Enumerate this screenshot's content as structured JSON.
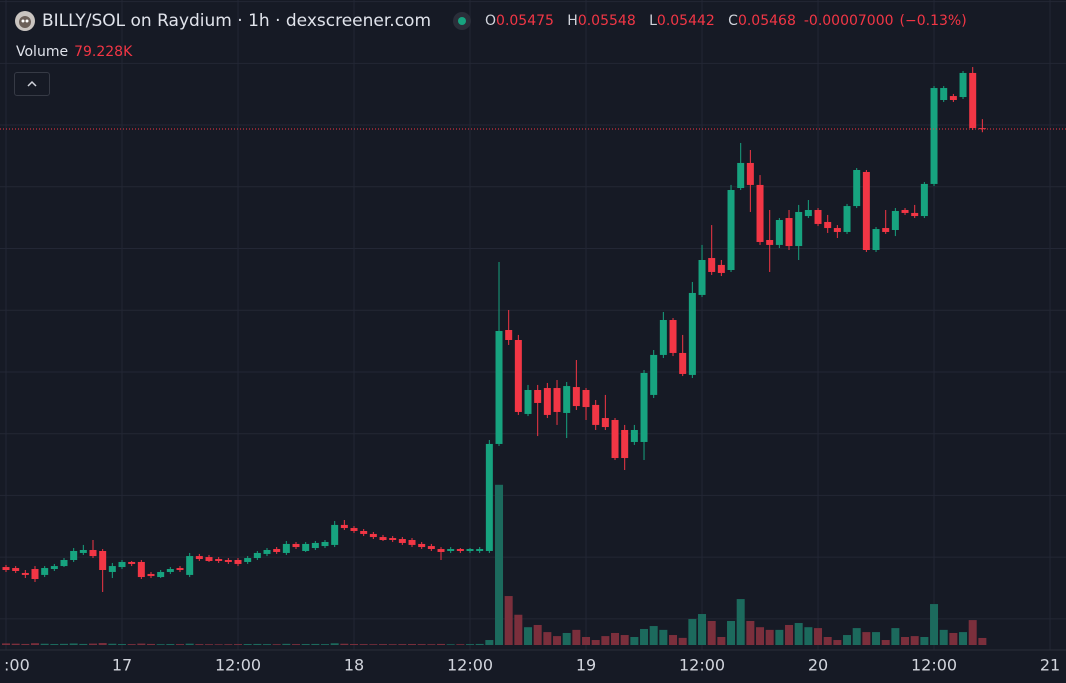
{
  "chart_data": {
    "type": "candlestick",
    "title": "BILLY/SOL on Raydium · 1h · dexscreener.com",
    "readout": {
      "letters": [
        "O",
        "H",
        "L",
        "C"
      ],
      "values": [
        0.05475,
        0.05548,
        0.05442,
        0.05468
      ],
      "change": {
        "value": -7e-05,
        "label": "-0.00007000"
      },
      "change_percent": {
        "value": -0.13,
        "label": "(−0.13%)"
      }
    },
    "volume_title": "Volume",
    "volume_readout": {
      "value": 79228,
      "label": "79.228K"
    },
    "categories": [
      ":00",
      null,
      null,
      null,
      null,
      null,
      null,
      null,
      null,
      null,
      null,
      null,
      "17",
      null,
      null,
      null,
      null,
      null,
      null,
      null,
      null,
      null,
      null,
      null,
      "12:00",
      null,
      null,
      null,
      null,
      null,
      null,
      null,
      null,
      null,
      null,
      null,
      "18",
      null,
      null,
      null,
      null,
      null,
      null,
      null,
      null,
      null,
      null,
      null,
      "12:00",
      null,
      null,
      null,
      null,
      null,
      null,
      null,
      null,
      null,
      null,
      null,
      "19",
      null,
      null,
      null,
      null,
      null,
      null,
      null,
      null,
      null,
      null,
      null,
      "12:00",
      null,
      null,
      null,
      null,
      null,
      null,
      null,
      null,
      null,
      null,
      null,
      "20",
      null,
      null,
      null,
      null,
      null,
      null,
      null,
      null,
      null,
      null,
      null,
      "12:00",
      null,
      null,
      null,
      null,
      null,
      null,
      null,
      null,
      null,
      null,
      null,
      "21"
    ],
    "open": [
      0.0192,
      0.01912,
      0.01872,
      0.01904,
      0.01856,
      0.01904,
      0.01928,
      0.01977,
      0.02034,
      0.02058,
      0.0205,
      0.0188,
      0.0192,
      0.01961,
      0.01961,
      0.01864,
      0.01839,
      0.0188,
      0.01912,
      0.01856,
      0.02009,
      0.02001,
      0.01985,
      0.01977,
      0.01977,
      0.01961,
      0.01993,
      0.02026,
      0.02066,
      0.02034,
      0.02107,
      0.0205,
      0.02074,
      0.0209,
      0.02099,
      0.02261,
      0.02236,
      0.02212,
      0.02188,
      0.02163,
      0.02155,
      0.02147,
      0.02139,
      0.02107,
      0.0209,
      0.02066,
      0.0205,
      0.02066,
      0.0205,
      0.0205,
      0.0205,
      0.02917,
      0.0384,
      0.03759,
      0.0316,
      0.03354,
      0.0337,
      0.0337,
      0.03168,
      0.03378,
      0.03354,
      0.03233,
      0.03127,
      0.03111,
      0.0303,
      0.02933,
      0.02933,
      0.03314,
      0.03638,
      0.03921,
      0.03654,
      0.03476,
      0.04124,
      0.04423,
      0.04367,
      0.04326,
      0.0499,
      0.05193,
      0.05015,
      0.04569,
      0.04529,
      0.04747,
      0.0452,
      0.04763,
      0.04812,
      0.04715,
      0.04666,
      0.04634,
      0.04844,
      0.0512,
      0.04488,
      0.04666,
      0.0465,
      0.04812,
      0.04788,
      0.04763,
      0.05023,
      0.05703,
      0.05735,
      0.05727,
      0.05922,
      0.05475,
      null,
      null,
      null,
      null,
      null,
      null,
      null
    ],
    "high": [
      0.01937,
      0.01928,
      0.01896,
      0.01928,
      0.01928,
      0.01945,
      0.01993,
      0.02074,
      0.02099,
      0.02139,
      0.02066,
      0.01953,
      0.01977,
      0.01969,
      0.01977,
      0.0188,
      0.01896,
      0.0192,
      0.01928,
      0.02034,
      0.02026,
      0.02018,
      0.02001,
      0.01993,
      0.01993,
      0.02009,
      0.0205,
      0.02074,
      0.02082,
      0.02131,
      0.02123,
      0.02123,
      0.02131,
      0.02139,
      0.02293,
      0.02301,
      0.02252,
      0.02228,
      0.02204,
      0.0218,
      0.02171,
      0.02163,
      0.02155,
      0.02123,
      0.02107,
      0.02082,
      0.02082,
      0.02074,
      0.02074,
      0.02082,
      0.02949,
      0.04391,
      0.04002,
      0.038,
      0.03395,
      0.03395,
      0.03411,
      0.03435,
      0.03419,
      0.03597,
      0.0337,
      0.03273,
      0.03314,
      0.03127,
      0.03071,
      0.03071,
      0.03516,
      0.03678,
      0.03986,
      0.03937,
      0.038,
      0.04229,
      0.04529,
      0.0469,
      0.04407,
      0.05015,
      0.05355,
      0.05298,
      0.05095,
      0.04812,
      0.04747,
      0.04812,
      0.04853,
      0.04893,
      0.04828,
      0.04772,
      0.0469,
      0.04861,
      0.05152,
      0.05136,
      0.04674,
      0.04812,
      0.04828,
      0.04828,
      0.04853,
      0.05039,
      0.05816,
      0.05816,
      0.05752,
      0.05938,
      0.0597,
      0.05548,
      null,
      null,
      null,
      null,
      null,
      null,
      null
    ],
    "low": [
      0.0188,
      0.01872,
      0.01831,
      0.01799,
      0.01839,
      0.01888,
      0.0192,
      0.01961,
      0.02018,
      0.01993,
      0.01718,
      0.01831,
      0.01904,
      0.01928,
      0.01823,
      0.01831,
      0.01831,
      0.01864,
      0.0188,
      0.01839,
      0.01969,
      0.01961,
      0.01953,
      0.01945,
      0.01928,
      0.01945,
      0.01977,
      0.02009,
      0.02026,
      0.02018,
      0.02066,
      0.02042,
      0.02058,
      0.02074,
      0.02082,
      0.0222,
      0.02196,
      0.02171,
      0.02147,
      0.02131,
      0.02123,
      0.02099,
      0.02082,
      0.02066,
      0.0205,
      0.01977,
      0.02034,
      0.02034,
      0.02034,
      0.02034,
      0.02034,
      0.029,
      0.03719,
      0.03152,
      0.03143,
      0.02981,
      0.03127,
      0.03071,
      0.02965,
      0.03192,
      0.03111,
      0.0303,
      0.0303,
      0.02787,
      0.02706,
      0.02909,
      0.02787,
      0.03289,
      0.03613,
      0.03629,
      0.03467,
      0.03451,
      0.04107,
      0.04286,
      0.04277,
      0.0431,
      0.04974,
      0.04796,
      0.04529,
      0.0431,
      0.04504,
      0.04488,
      0.04407,
      0.04747,
      0.04682,
      0.04626,
      0.04585,
      0.04618,
      0.04828,
      0.04472,
      0.04472,
      0.04618,
      0.04601,
      0.04772,
      0.04747,
      0.04747,
      0.05006,
      0.05687,
      0.05687,
      0.05711,
      0.0546,
      0.05442,
      null,
      null,
      null,
      null,
      null,
      null,
      null
    ],
    "close": [
      0.01896,
      0.01888,
      0.01856,
      0.01823,
      0.01912,
      0.01928,
      0.01977,
      0.0205,
      0.02058,
      0.02009,
      0.01896,
      0.01928,
      0.01961,
      0.01945,
      0.01839,
      0.01847,
      0.0188,
      0.01904,
      0.01896,
      0.02009,
      0.01985,
      0.01969,
      0.01969,
      0.01961,
      0.01945,
      0.01993,
      0.02034,
      0.02058,
      0.02042,
      0.02107,
      0.02082,
      0.02107,
      0.02115,
      0.02123,
      0.02261,
      0.02236,
      0.02212,
      0.02188,
      0.02163,
      0.02139,
      0.02139,
      0.02115,
      0.02099,
      0.02082,
      0.02066,
      0.02042,
      0.02066,
      0.0205,
      0.02066,
      0.02066,
      0.02917,
      0.03832,
      0.03759,
      0.03176,
      0.03354,
      0.03249,
      0.03152,
      0.03176,
      0.03386,
      0.03224,
      0.03216,
      0.03071,
      0.03054,
      0.02803,
      0.02803,
      0.0303,
      0.03492,
      0.03638,
      0.03921,
      0.03654,
      0.03484,
      0.0414,
      0.04407,
      0.0431,
      0.04302,
      0.04974,
      0.05193,
      0.05015,
      0.04553,
      0.04529,
      0.04731,
      0.0452,
      0.04796,
      0.04812,
      0.04699,
      0.04666,
      0.04634,
      0.04844,
      0.05136,
      0.04488,
      0.04658,
      0.04634,
      0.04804,
      0.04788,
      0.04763,
      0.05023,
      0.058,
      0.058,
      0.05703,
      0.05922,
      0.05476,
      0.05468,
      null,
      null,
      null,
      null,
      null,
      null,
      null
    ],
    "volume": [
      18000,
      15000,
      12000,
      20000,
      14000,
      11000,
      13000,
      17000,
      12000,
      16000,
      22000,
      14000,
      11000,
      10000,
      16000,
      12000,
      9000,
      11000,
      10000,
      15000,
      10000,
      9000,
      8000,
      9000,
      10000,
      11000,
      12000,
      10000,
      9000,
      13000,
      10000,
      11000,
      12000,
      10000,
      19000,
      14000,
      11000,
      10000,
      9000,
      10000,
      9000,
      10000,
      11000,
      10000,
      9000,
      12000,
      8000,
      9000,
      10000,
      12000,
      56000,
      1800000,
      550000,
      340000,
      200000,
      225000,
      145000,
      100000,
      135000,
      170000,
      90000,
      56000,
      100000,
      135000,
      112000,
      90000,
      180000,
      213000,
      170000,
      112000,
      80000,
      292000,
      348000,
      270000,
      90000,
      270000,
      516000,
      270000,
      200000,
      170000,
      170000,
      225000,
      247000,
      200000,
      190000,
      90000,
      56000,
      112000,
      190000,
      145000,
      145000,
      56000,
      190000,
      90000,
      100000,
      90000,
      460000,
      170000,
      135000,
      145000,
      280000,
      79228,
      null,
      null,
      null,
      null,
      null,
      null,
      null
    ],
    "ylim": [
      0.01248,
      0.06513
    ],
    "yticks": [
      0.015,
      0.02,
      0.025,
      0.03,
      0.035,
      0.04,
      0.045,
      0.05,
      0.055,
      0.06,
      0.065
    ],
    "volume_lim": [
      0,
      2000000
    ],
    "grid": true,
    "up_color": "#17a37f",
    "down_color": "#f23645",
    "volume_up_color": "#1c6a5d",
    "volume_down_color": "#7b2f3c"
  }
}
